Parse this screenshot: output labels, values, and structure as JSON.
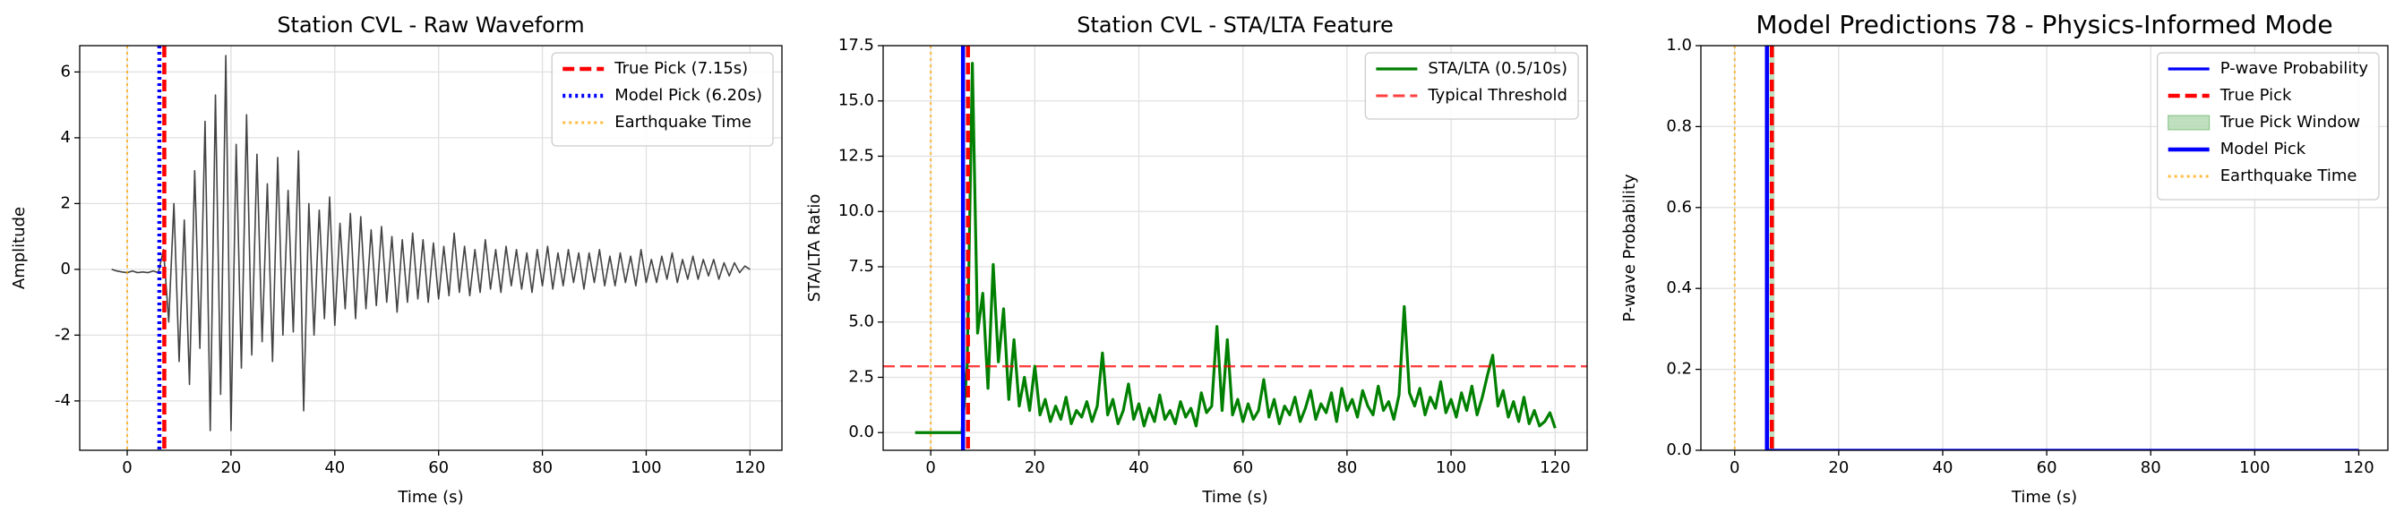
{
  "chart_data": [
    {
      "type": "line",
      "title": "Station CVL - Raw Waveform",
      "xlabel": "Time (s)",
      "ylabel": "Amplitude",
      "xlim": [
        -9.15,
        126.15
      ],
      "ylim": [
        -5.5,
        6.8
      ],
      "xticks": [
        0,
        20,
        40,
        60,
        80,
        100,
        120
      ],
      "yticks": [
        -4,
        -2,
        0,
        2,
        4,
        6
      ],
      "grid": true,
      "legend": "upper right",
      "layers": [
        {
          "kind": "series",
          "color": "#222222",
          "style": "solid",
          "x": [
            -3,
            -2,
            -1,
            0,
            1,
            2,
            3,
            4,
            5,
            6,
            7,
            8,
            9,
            10,
            11,
            12,
            13,
            14,
            15,
            16,
            17,
            18,
            19,
            20,
            21,
            22,
            23,
            24,
            25,
            26,
            27,
            28,
            29,
            30,
            31,
            32,
            33,
            34,
            35,
            36,
            37,
            38,
            39,
            40,
            41,
            42,
            43,
            44,
            45,
            46,
            47,
            48,
            49,
            50,
            51,
            52,
            53,
            54,
            55,
            56,
            57,
            58,
            59,
            60,
            61,
            62,
            63,
            64,
            65,
            66,
            67,
            68,
            69,
            70,
            71,
            72,
            73,
            74,
            75,
            76,
            77,
            78,
            79,
            80,
            81,
            82,
            83,
            84,
            85,
            86,
            87,
            88,
            89,
            90,
            91,
            92,
            93,
            94,
            95,
            96,
            97,
            98,
            99,
            100,
            101,
            102,
            103,
            104,
            105,
            106,
            107,
            108,
            109,
            110,
            111,
            112,
            113,
            114,
            115,
            116,
            117,
            118,
            119,
            120
          ],
          "values": [
            0,
            -0.05,
            -0.08,
            -0.1,
            -0.05,
            -0.1,
            -0.08,
            -0.1,
            -0.05,
            -0.1,
            0.6,
            -1.6,
            2.0,
            -2.8,
            1.5,
            -3.5,
            3.0,
            -2.4,
            4.5,
            -4.9,
            5.3,
            -3.8,
            6.5,
            -4.9,
            3.8,
            -3.0,
            4.7,
            -2.6,
            3.5,
            -2.2,
            2.6,
            -2.8,
            3.4,
            -2.0,
            2.4,
            -1.9,
            3.6,
            -4.3,
            2.0,
            -2.0,
            1.8,
            -1.5,
            2.2,
            -1.7,
            1.4,
            -1.2,
            1.7,
            -1.5,
            1.6,
            -1.2,
            1.2,
            -1.1,
            1.3,
            -1.0,
            1.0,
            -1.3,
            0.9,
            -1.0,
            1.1,
            -0.9,
            0.9,
            -1.0,
            0.8,
            -0.9,
            0.7,
            -0.8,
            1.1,
            -0.7,
            0.7,
            -0.8,
            0.6,
            -0.7,
            0.9,
            -0.6,
            0.6,
            -0.7,
            0.7,
            -0.5,
            0.6,
            -0.6,
            0.5,
            -0.7,
            0.6,
            -0.5,
            0.7,
            -0.6,
            0.5,
            -0.5,
            0.6,
            -0.4,
            0.5,
            -0.6,
            0.5,
            -0.4,
            0.6,
            -0.5,
            0.4,
            -0.5,
            0.5,
            -0.4,
            0.4,
            -0.5,
            0.6,
            -0.4,
            0.3,
            -0.4,
            0.4,
            -0.3,
            0.5,
            -0.4,
            0.3,
            -0.3,
            0.4,
            -0.3,
            0.3,
            -0.2,
            0.3,
            -0.3,
            0.2,
            -0.2,
            0.2,
            -0.1,
            0.1,
            0.0
          ]
        },
        {
          "kind": "vline",
          "name": "True Pick (7.15s)",
          "x": 7.15,
          "color": "red",
          "style": "dashed"
        },
        {
          "kind": "vline",
          "name": "Model Pick (6.20s)",
          "x": 6.2,
          "color": "blue",
          "style": "dotted"
        },
        {
          "kind": "vline",
          "name": "Earthquake Time",
          "x": 0,
          "color": "orange",
          "style": "dotted"
        }
      ]
    },
    {
      "type": "line",
      "title": "Station CVL - STA/LTA Feature",
      "xlabel": "Time (s)",
      "ylabel": "STA/LTA Ratio",
      "xlim": [
        -9.15,
        126.15
      ],
      "ylim": [
        -0.8,
        17.5
      ],
      "xticks": [
        0,
        20,
        40,
        60,
        80,
        100,
        120
      ],
      "yticks": [
        {
          "value": 0,
          "label": "0.0"
        },
        2.5,
        {
          "value": 5,
          "label": "5.0"
        },
        7.5,
        {
          "value": 10,
          "label": "10.0"
        },
        12.5,
        {
          "value": 15,
          "label": "15.0"
        },
        17.5
      ],
      "grid": true,
      "legend": "upper right",
      "layers": [
        {
          "kind": "series",
          "name": "STA/LTA (0.5/10s)",
          "color": "green",
          "style": "solid",
          "x": [
            -3,
            -2,
            -1,
            0,
            1,
            2,
            3,
            4,
            5,
            6,
            7,
            8,
            9,
            10,
            11,
            12,
            13,
            14,
            15,
            16,
            17,
            18,
            19,
            20,
            21,
            22,
            23,
            24,
            25,
            26,
            27,
            28,
            29,
            30,
            31,
            32,
            33,
            34,
            35,
            36,
            37,
            38,
            39,
            40,
            41,
            42,
            43,
            44,
            45,
            46,
            47,
            48,
            49,
            50,
            51,
            52,
            53,
            54,
            55,
            56,
            57,
            58,
            59,
            60,
            61,
            62,
            63,
            64,
            65,
            66,
            67,
            68,
            69,
            70,
            71,
            72,
            73,
            74,
            75,
            76,
            77,
            78,
            79,
            80,
            81,
            82,
            83,
            84,
            85,
            86,
            87,
            88,
            89,
            90,
            91,
            92,
            93,
            94,
            95,
            96,
            97,
            98,
            99,
            100,
            101,
            102,
            103,
            104,
            105,
            106,
            107,
            108,
            109,
            110,
            111,
            112,
            113,
            114,
            115,
            116,
            117,
            118,
            119,
            120
          ],
          "values": [
            0,
            0,
            0,
            0,
            0,
            0,
            0,
            0,
            0,
            0,
            3.0,
            16.7,
            4.5,
            6.3,
            2.0,
            7.6,
            3.2,
            5.6,
            1.5,
            4.2,
            1.2,
            2.5,
            1.0,
            3.0,
            0.8,
            1.5,
            0.5,
            1.2,
            0.6,
            1.6,
            0.4,
            1.0,
            0.7,
            1.4,
            0.5,
            1.2,
            3.6,
            0.8,
            1.5,
            0.4,
            1.0,
            2.2,
            0.6,
            1.3,
            0.3,
            1.1,
            0.5,
            1.7,
            0.6,
            1.0,
            0.4,
            1.4,
            0.7,
            1.1,
            0.3,
            1.8,
            0.9,
            1.2,
            4.8,
            1.0,
            4.2,
            0.8,
            1.5,
            0.5,
            1.3,
            0.6,
            1.0,
            2.4,
            0.7,
            1.5,
            0.4,
            1.2,
            0.8,
            1.6,
            0.5,
            1.1,
            1.9,
            0.6,
            1.3,
            0.9,
            1.8,
            0.5,
            2.0,
            1.0,
            1.5,
            0.7,
            1.9,
            1.2,
            0.8,
            2.1,
            1.0,
            1.4,
            0.6,
            1.7,
            5.7,
            1.8,
            1.2,
            2.0,
            0.8,
            1.6,
            1.1,
            2.3,
            0.9,
            1.5,
            0.7,
            1.8,
            1.0,
            2.1,
            0.8,
            1.6,
            2.6,
            3.5,
            1.2,
            1.9,
            0.7,
            1.4,
            0.5,
            1.6,
            0.4,
            1.0,
            0.3,
            0.5,
            0.9,
            0.2
          ]
        },
        {
          "kind": "hline",
          "name": "Typical Threshold",
          "y": 3,
          "color": "red",
          "style": "dashed"
        },
        {
          "kind": "vline",
          "x": 6.2,
          "color": "blue",
          "style": "solid"
        },
        {
          "kind": "vline",
          "x": 7.15,
          "color": "red",
          "style": "dashed"
        },
        {
          "kind": "vline",
          "x": 0,
          "color": "orange",
          "style": "dotted"
        }
      ]
    },
    {
      "type": "line",
      "title": "Model Predictions 78 - Physics-Informed Mode",
      "xlabel": "Time (s)",
      "ylabel": "P-wave Probability",
      "xlim": [
        -6.5,
        125.6
      ],
      "ylim": [
        0,
        1
      ],
      "xticks": [
        0,
        20,
        40,
        60,
        80,
        100,
        120
      ],
      "yticks": [
        {
          "value": 0,
          "label": "0.0"
        },
        0.2,
        0.4,
        0.6,
        0.8,
        {
          "value": 1,
          "label": "1.0"
        }
      ],
      "grid": true,
      "legend": "upper right",
      "layers": [
        {
          "kind": "series",
          "name": "P-wave Probability",
          "color": "blue",
          "style": "solid",
          "x": [
            6.2,
            120
          ],
          "values": [
            0,
            0
          ]
        },
        {
          "kind": "vline",
          "name": "True Pick",
          "x": 7.15,
          "color": "red",
          "style": "dashed"
        },
        {
          "kind": "span",
          "name": "True Pick Window",
          "x": [
            6.65,
            7.65
          ],
          "color": "green"
        },
        {
          "kind": "vline",
          "name": "Model Pick",
          "x": 6.2,
          "color": "blue",
          "style": "solid"
        },
        {
          "kind": "vline",
          "name": "Earthquake Time",
          "x": 0,
          "color": "orange",
          "style": "dotted"
        }
      ]
    }
  ]
}
